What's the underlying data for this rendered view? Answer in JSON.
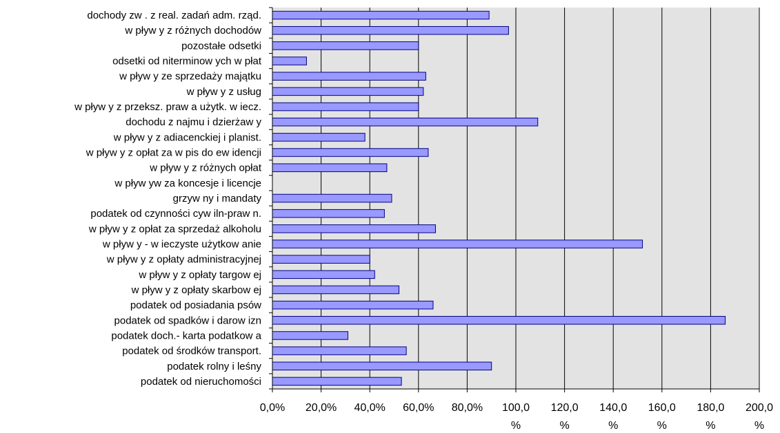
{
  "chart_data": {
    "type": "bar",
    "orientation": "horizontal",
    "categories": [
      "dochody zw . z real. zadań adm. rząd.",
      "w pływ y z różnych dochodów",
      "pozostałe odsetki",
      "odsetki od niterminow ych w płat",
      "w pływ y ze sprzedaży majątku",
      "w pływ y z usług",
      "w pływ y z przeksz. praw a użytk. w iecz.",
      "dochodu z najmu i dzierżaw y",
      "w pływ y z adiacenckiej i planist.",
      "w pływ y z opłat za w pis do ew idencji",
      "w pływ y z różnych opłat",
      "w pływ yw  za koncesje i licencje",
      "grzyw ny i mandaty",
      "podatek od czynności cyw iln-praw n.",
      "w pływ y z opłat za sprzedaż alkoholu",
      "w pływ y - w ieczyste użytkow anie",
      "w pływ y z opłaty administracyjnej",
      "w pływ y z opłaty targow ej",
      "w pływ y z opłaty skarbow ej",
      "podatek od posiadania psów",
      "podatek od spadków  i darow izn",
      "podatek doch.- karta podatkow a",
      "podatek od środków  transport.",
      "podatek rolny i leśny",
      "podatek od nieruchomości"
    ],
    "values": [
      89,
      97,
      60,
      14,
      63,
      62,
      60,
      109,
      38,
      64,
      47,
      0,
      49,
      46,
      67,
      152,
      40,
      42,
      52,
      66,
      186,
      31,
      55,
      90,
      53
    ],
    "xlim": [
      0,
      200
    ],
    "xticks": [
      0,
      20,
      40,
      60,
      80,
      100,
      120,
      140,
      160,
      180,
      200
    ],
    "xtick_labels": [
      [
        "0,0%"
      ],
      [
        "20,0%"
      ],
      [
        "40,0%"
      ],
      [
        "60,0%"
      ],
      [
        "80,0%"
      ],
      [
        "100,0",
        "%"
      ],
      [
        "120,0",
        "%"
      ],
      [
        "140,0",
        "%"
      ],
      [
        "160,0",
        "%"
      ],
      [
        "180,0",
        "%"
      ],
      [
        "200,0",
        "%"
      ]
    ],
    "grid": "vertical",
    "legend": "none",
    "colors": {
      "bar_fill": "#9999FF",
      "bar_stroke": "#000080",
      "plot_background": "#E3E3E3",
      "gridline": "#000000"
    }
  }
}
